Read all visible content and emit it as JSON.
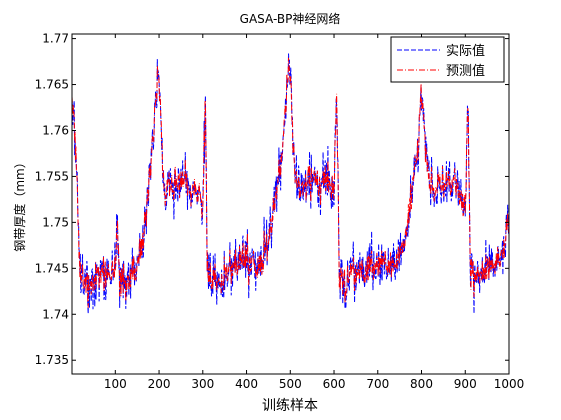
{
  "chart_data": {
    "type": "line",
    "title": "GASA-BP神经网络",
    "xlabel": "训练样本",
    "ylabel": "钢带厚度（mm）",
    "xlim": [
      1,
      1000
    ],
    "ylim": [
      1.7335,
      1.7705
    ],
    "xticks": [
      100,
      200,
      300,
      400,
      500,
      600,
      700,
      800,
      900,
      1000
    ],
    "yticks": [
      1.735,
      1.74,
      1.745,
      1.75,
      1.755,
      1.76,
      1.765,
      1.77
    ],
    "ytick_labels": [
      "1.735",
      "1.74",
      "1.745",
      "1.75",
      "1.755",
      "1.76",
      "1.765",
      "1.77"
    ],
    "grid": false,
    "legend_position": "top-right",
    "series": [
      {
        "name": "实际值",
        "color": "#0000ff",
        "dash": "dashed"
      },
      {
        "name": "预测值",
        "color": "#ff0000",
        "dash": "dash-dot"
      }
    ],
    "profile_x": [
      1,
      5,
      10,
      18,
      30,
      50,
      70,
      90,
      100,
      104,
      110,
      130,
      150,
      160,
      170,
      180,
      190,
      196,
      200,
      204,
      208,
      212,
      220,
      240,
      260,
      280,
      300,
      306,
      310,
      330,
      350,
      370,
      390,
      400,
      420,
      450,
      480,
      490,
      496,
      500,
      504,
      510,
      520,
      540,
      560,
      580,
      600,
      606,
      612,
      620,
      640,
      660,
      680,
      700,
      720,
      740,
      760,
      790,
      800,
      804,
      808,
      812,
      820,
      840,
      860,
      880,
      900,
      906,
      912,
      920,
      940,
      960,
      980,
      1000
    ],
    "profile_y": [
      1.7645,
      1.7625,
      1.758,
      1.745,
      1.743,
      1.744,
      1.7445,
      1.744,
      1.7455,
      1.7505,
      1.744,
      1.7435,
      1.7455,
      1.747,
      1.7505,
      1.756,
      1.7615,
      1.7665,
      1.7655,
      1.7615,
      1.756,
      1.7525,
      1.7535,
      1.7545,
      1.7545,
      1.7535,
      1.752,
      1.7645,
      1.7435,
      1.7435,
      1.7445,
      1.745,
      1.7455,
      1.7465,
      1.7445,
      1.7475,
      1.7575,
      1.7635,
      1.7675,
      1.7655,
      1.7615,
      1.7555,
      1.7535,
      1.7545,
      1.7545,
      1.7545,
      1.7535,
      1.7645,
      1.7435,
      1.7435,
      1.7445,
      1.7445,
      1.745,
      1.745,
      1.7455,
      1.7455,
      1.7475,
      1.7575,
      1.7635,
      1.7625,
      1.759,
      1.756,
      1.7535,
      1.7545,
      1.7545,
      1.7535,
      1.752,
      1.7625,
      1.7445,
      1.744,
      1.7445,
      1.7455,
      1.746,
      1.7505
    ],
    "noise_amplitude": 0.0027,
    "points": 1000
  }
}
